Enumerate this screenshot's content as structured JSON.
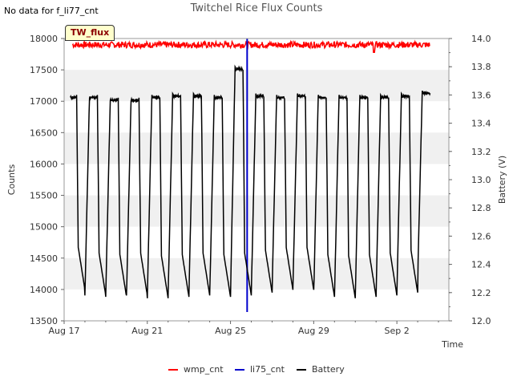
{
  "header": {
    "nodata_text": "No data for f_li77_cnt",
    "title": "Twitchel Rice Flux Counts",
    "tag": "TW_flux"
  },
  "colors": {
    "wmp": "#ff0000",
    "li75": "#0000cc",
    "battery": "#000000",
    "band": "#f0f0f0"
  },
  "chart_data": {
    "type": "line",
    "title": "Twitchel Rice Flux Counts",
    "xlabel": "Time",
    "ylabel": "Counts",
    "y2label": "Battery (V)",
    "xlim": [
      "2023-08-17",
      "2023-09-04T12:00"
    ],
    "ylim": [
      13500,
      18000
    ],
    "y2lim": [
      12.0,
      14.0
    ],
    "x_ticks": [
      "Aug 17",
      "Aug 21",
      "Aug 25",
      "Aug 29",
      "Sep 2"
    ],
    "y_ticks": [
      13500,
      14000,
      14500,
      15000,
      15500,
      16000,
      16500,
      17000,
      17500,
      18000
    ],
    "y2_ticks": [
      12.0,
      12.2,
      12.4,
      12.6,
      12.8,
      13.0,
      13.2,
      13.4,
      13.6,
      13.8,
      14.0
    ],
    "grid": "horizontal-bands",
    "legend_position": "bottom",
    "series": [
      {
        "name": "wmp_cnt",
        "axis": "left",
        "approx_value": 17900,
        "noise": 50,
        "dip_at_day": 14.9,
        "dip_value": 17780
      },
      {
        "name": "li75_cnt",
        "axis": "left",
        "spike_day": 8.8,
        "spike_range": [
          13640,
          18000
        ]
      },
      {
        "name": "Battery",
        "axis": "right",
        "daily_min_volts": [
          12.22,
          12.18,
          12.17,
          12.18,
          12.16,
          12.17,
          12.18,
          12.17,
          12.18,
          12.2,
          12.22,
          12.22,
          12.17,
          12.16,
          12.17,
          12.18,
          12.2,
          12.3
        ],
        "daily_max_volts": [
          13.6,
          13.6,
          13.58,
          13.58,
          13.6,
          13.61,
          13.61,
          13.6,
          13.8,
          13.61,
          13.6,
          13.61,
          13.6,
          13.6,
          13.6,
          13.6,
          13.61,
          13.63
        ]
      }
    ]
  },
  "legend": [
    {
      "label": "wmp_cnt",
      "color": "#ff0000"
    },
    {
      "label": "li75_cnt",
      "color": "#0000cc"
    },
    {
      "label": "Battery",
      "color": "#000000"
    }
  ]
}
